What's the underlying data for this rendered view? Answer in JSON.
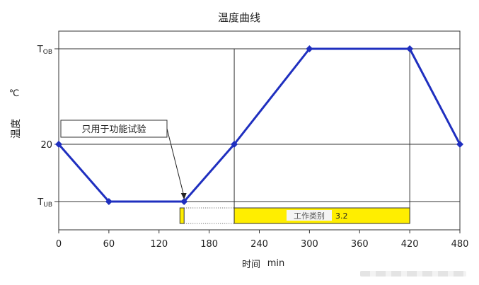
{
  "chart_data": {
    "type": "line",
    "title": "温度曲线",
    "xlabel": "时间",
    "xunit": "min",
    "ylabel": "温度",
    "yunit": "℃",
    "xlim": [
      0,
      480
    ],
    "x_ticks": [
      0,
      60,
      120,
      180,
      240,
      300,
      360,
      420,
      480
    ],
    "y_levels": [
      {
        "name": "T_OB",
        "main": "T",
        "sub": "OB"
      },
      {
        "name": "20",
        "main": "20",
        "sub": ""
      },
      {
        "name": "T_UB",
        "main": "T",
        "sub": "UB"
      }
    ],
    "series": [
      {
        "color": "#1f2fbf",
        "points": [
          {
            "x": 0,
            "y": "20"
          },
          {
            "x": 60,
            "y": "T_UB"
          },
          {
            "x": 150,
            "y": "T_UB"
          },
          {
            "x": 210,
            "y": "20"
          },
          {
            "x": 300,
            "y": "T_OB"
          },
          {
            "x": 420,
            "y": "T_OB"
          },
          {
            "x": 480,
            "y": "20"
          }
        ]
      }
    ],
    "annotations": {
      "callout": {
        "text": "只用于功能试验",
        "target_x": 150
      },
      "functional_bar": {
        "x_start": 145,
        "x_end": 150,
        "color": "#ffee00"
      },
      "operation_bar": {
        "x_start": 210,
        "x_end": 420,
        "label": "工作类别",
        "value": "3.2",
        "color": "#ffee00"
      }
    },
    "grid": {
      "horizontal_lines_at_levels": true,
      "vertical_guides_at_x": [
        210,
        420
      ]
    }
  }
}
